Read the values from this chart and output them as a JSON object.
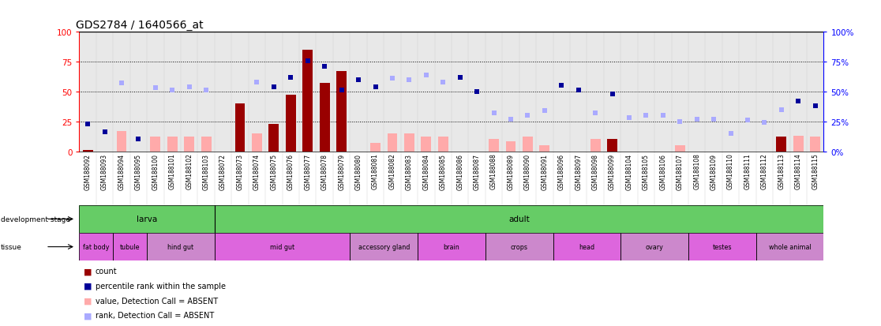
{
  "title": "GDS2784 / 1640566_at",
  "samples": [
    "GSM188092",
    "GSM188093",
    "GSM188094",
    "GSM188095",
    "GSM188100",
    "GSM188101",
    "GSM188102",
    "GSM188103",
    "GSM188072",
    "GSM188073",
    "GSM188074",
    "GSM188075",
    "GSM188076",
    "GSM188077",
    "GSM188078",
    "GSM188079",
    "GSM188080",
    "GSM188081",
    "GSM188082",
    "GSM188083",
    "GSM188084",
    "GSM188085",
    "GSM188086",
    "GSM188087",
    "GSM188088",
    "GSM188089",
    "GSM188090",
    "GSM188091",
    "GSM188096",
    "GSM188097",
    "GSM188098",
    "GSM188099",
    "GSM188104",
    "GSM188105",
    "GSM188106",
    "GSM188107",
    "GSM188108",
    "GSM188109",
    "GSM188110",
    "GSM188111",
    "GSM188112",
    "GSM188113",
    "GSM188114",
    "GSM188115"
  ],
  "count_values": [
    1,
    0,
    0,
    0,
    0,
    0,
    0,
    0,
    0,
    40,
    15,
    23,
    47,
    85,
    57,
    67,
    0,
    0,
    0,
    0,
    0,
    0,
    0,
    0,
    0,
    0,
    0,
    0,
    0,
    0,
    0,
    10,
    0,
    0,
    0,
    0,
    0,
    0,
    0,
    0,
    0,
    12,
    0,
    0
  ],
  "count_absent": [
    false,
    false,
    true,
    false,
    true,
    true,
    true,
    true,
    false,
    false,
    true,
    false,
    false,
    false,
    false,
    false,
    false,
    true,
    true,
    true,
    true,
    true,
    false,
    false,
    true,
    true,
    true,
    true,
    false,
    false,
    true,
    false,
    false,
    false,
    false,
    true,
    false,
    false,
    false,
    false,
    false,
    false,
    true,
    true
  ],
  "absent_count_values": [
    0,
    0,
    17,
    0,
    12,
    12,
    12,
    12,
    0,
    0,
    15,
    0,
    0,
    0,
    0,
    0,
    0,
    7,
    15,
    15,
    12,
    12,
    0,
    0,
    10,
    8,
    12,
    5,
    0,
    0,
    10,
    0,
    0,
    0,
    0,
    5,
    0,
    0,
    0,
    0,
    0,
    0,
    13,
    12
  ],
  "rank_values": [
    23,
    16,
    0,
    10,
    0,
    0,
    0,
    0,
    0,
    0,
    0,
    54,
    62,
    76,
    71,
    51,
    60,
    54,
    0,
    0,
    0,
    0,
    62,
    50,
    0,
    0,
    0,
    0,
    55,
    51,
    0,
    48,
    0,
    0,
    0,
    0,
    0,
    0,
    0,
    0,
    0,
    0,
    42,
    38
  ],
  "rank_absent": [
    false,
    false,
    true,
    false,
    true,
    true,
    true,
    true,
    false,
    false,
    true,
    false,
    false,
    false,
    false,
    false,
    false,
    false,
    true,
    true,
    true,
    true,
    false,
    false,
    true,
    true,
    true,
    true,
    false,
    false,
    true,
    false,
    true,
    true,
    true,
    true,
    true,
    true,
    true,
    true,
    true,
    true,
    false,
    false
  ],
  "absent_rank_values": [
    0,
    0,
    57,
    0,
    53,
    51,
    54,
    51,
    0,
    0,
    58,
    0,
    0,
    0,
    0,
    0,
    0,
    0,
    61,
    60,
    64,
    58,
    0,
    0,
    32,
    27,
    30,
    34,
    0,
    0,
    32,
    0,
    28,
    30,
    30,
    25,
    27,
    27,
    15,
    26,
    24,
    35,
    0,
    0
  ],
  "tissue_groups": [
    {
      "label": "fat body",
      "start": 0,
      "end": 2,
      "color": "#dd66dd"
    },
    {
      "label": "tubule",
      "start": 2,
      "end": 4,
      "color": "#dd66dd"
    },
    {
      "label": "hind gut",
      "start": 4,
      "end": 8,
      "color": "#cc88cc"
    },
    {
      "label": "mid gut",
      "start": 8,
      "end": 16,
      "color": "#dd66dd"
    },
    {
      "label": "accessory gland",
      "start": 16,
      "end": 20,
      "color": "#cc88cc"
    },
    {
      "label": "brain",
      "start": 20,
      "end": 24,
      "color": "#dd66dd"
    },
    {
      "label": "crops",
      "start": 24,
      "end": 28,
      "color": "#cc88cc"
    },
    {
      "label": "head",
      "start": 28,
      "end": 32,
      "color": "#dd66dd"
    },
    {
      "label": "ovary",
      "start": 32,
      "end": 36,
      "color": "#cc88cc"
    },
    {
      "label": "testes",
      "start": 36,
      "end": 40,
      "color": "#dd66dd"
    },
    {
      "label": "whole animal",
      "start": 40,
      "end": 44,
      "color": "#cc88cc"
    }
  ],
  "bar_color": "#990000",
  "absent_bar_color": "#ffaaaa",
  "rank_color": "#000099",
  "absent_rank_color": "#aaaaff",
  "bg_color": "#e8e8e8",
  "green_color": "#66cc66",
  "title_fontsize": 10,
  "tick_fontsize": 5.5
}
